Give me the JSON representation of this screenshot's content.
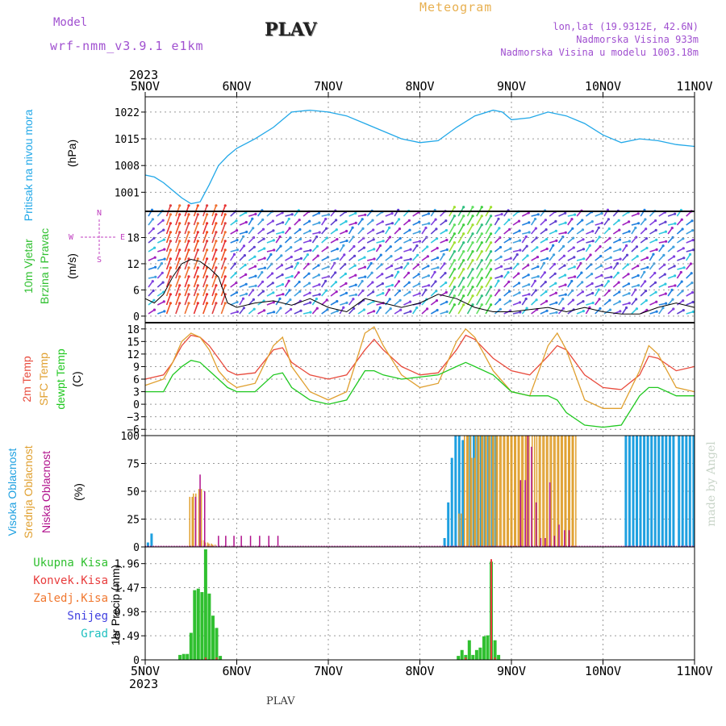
{
  "header": {
    "model_label": "Model",
    "model_name": "wrf-nmm_v3.9.1 e1km",
    "station": "PLAV",
    "product": "Meteogram",
    "lonlat": "lon,lat (19.9312E, 42.6N)",
    "elevation": "Nadmorska Visina 933m",
    "model_elevation": "Nadmorska Visina u modelu 1003.18m",
    "footer_station": "PLAV",
    "credit": "made by Angel"
  },
  "colors": {
    "pressure": "#22a8e8",
    "temp2m": "#e84a3c",
    "sfc_temp": "#e0a030",
    "dewpt": "#20c820",
    "high_cloud": "#1ea0e0",
    "mid_cloud": "#e0a030",
    "low_cloud": "#b0108c",
    "total_precip": "#30c030",
    "conv_precip": "#e83c3c",
    "frz_precip": "#f07830",
    "snow": "#4040e0",
    "grad": "#20c0c0",
    "model_text": "#a050d0",
    "product_text": "#e8b050",
    "axis_label_purple": "#c040c0"
  },
  "chart_data": [
    {
      "type": "line",
      "panel": "pressure",
      "ylabel_lines": [
        "Pritisak na nivou mora",
        "(hPa)"
      ],
      "yticks": [
        1001,
        1008,
        1015,
        1022
      ],
      "ylim": [
        996,
        1026
      ],
      "x_unit": "days since 5NOV 2023",
      "series": [
        {
          "name": "Pritisak na nivou mora",
          "x": [
            0,
            0.1,
            0.2,
            0.3,
            0.4,
            0.5,
            0.6,
            0.7,
            0.8,
            0.9,
            1.0,
            1.2,
            1.4,
            1.6,
            1.8,
            2.0,
            2.2,
            2.4,
            2.6,
            2.8,
            3.0,
            3.2,
            3.4,
            3.6,
            3.8,
            3.9,
            4.0,
            4.2,
            4.4,
            4.6,
            4.8,
            5.0,
            5.2,
            5.4,
            5.6,
            5.8,
            6.0
          ],
          "values": [
            1005.5,
            1005,
            1003.5,
            1001.5,
            999.5,
            998,
            998.5,
            1003,
            1008,
            1010.5,
            1012.5,
            1015,
            1018,
            1022,
            1022.5,
            1022,
            1021,
            1019,
            1017,
            1015,
            1014,
            1014.5,
            1018,
            1021,
            1022.5,
            1022,
            1020,
            1020.5,
            1022,
            1021,
            1019,
            1016,
            1014,
            1015,
            1014.5,
            1013.5,
            1013
          ]
        }
      ]
    },
    {
      "type": "line",
      "panel": "wind",
      "ylabel_lines": [
        "10m Vjetar",
        "Brzina i Pravac",
        "(m/s)"
      ],
      "compass": {
        "n": "N",
        "s": "S",
        "e": "E",
        "w": "W"
      },
      "yticks": [
        0,
        6,
        12,
        18
      ],
      "ylim": [
        -1.5,
        24
      ],
      "series": [
        {
          "name": "Brzina",
          "x": [
            0,
            0.1,
            0.2,
            0.3,
            0.4,
            0.5,
            0.6,
            0.7,
            0.8,
            0.9,
            1.0,
            1.2,
            1.4,
            1.6,
            1.8,
            2.0,
            2.2,
            2.4,
            2.6,
            2.8,
            3.0,
            3.2,
            3.4,
            3.6,
            3.8,
            4.0,
            4.2,
            4.4,
            4.6,
            4.8,
            5.0,
            5.2,
            5.4,
            5.6,
            5.8,
            6.0
          ],
          "values": [
            4,
            3,
            5,
            9,
            12,
            13,
            12.5,
            11,
            9,
            3,
            2,
            3,
            3.5,
            2.5,
            4,
            2,
            1,
            4,
            3,
            2,
            3,
            5,
            4,
            2,
            1,
            1,
            1.5,
            2,
            1,
            2,
            1,
            0.5,
            0.5,
            2,
            3,
            2
          ]
        }
      ]
    },
    {
      "type": "line",
      "panel": "temperature",
      "ylabel_lines": [
        "2m Temp",
        "SFC Temp",
        "dewpt Temp",
        "(C)"
      ],
      "yticks": [
        -6,
        -3,
        0,
        3,
        6,
        9,
        12,
        15,
        18
      ],
      "ylim": [
        -7.5,
        19.5
      ],
      "series": [
        {
          "name": "2m Temp",
          "x": [
            0,
            0.2,
            0.3,
            0.4,
            0.5,
            0.6,
            0.7,
            0.8,
            0.9,
            1.0,
            1.2,
            1.4,
            1.5,
            1.6,
            1.8,
            2.0,
            2.2,
            2.4,
            2.5,
            2.6,
            2.8,
            3.0,
            3.2,
            3.4,
            3.5,
            3.6,
            3.8,
            4.0,
            4.2,
            4.4,
            4.5,
            4.6,
            4.8,
            5.0,
            5.2,
            5.4,
            5.5,
            5.6,
            5.8,
            6.0
          ],
          "values": [
            6,
            7,
            10,
            14,
            16.5,
            16,
            14,
            11,
            8,
            7,
            7.5,
            13,
            13.5,
            10,
            7,
            6,
            7,
            13,
            15.5,
            13,
            9,
            7,
            7.5,
            13,
            16.5,
            15.5,
            11,
            8,
            7,
            11.5,
            14,
            13,
            7,
            4,
            3.5,
            7,
            11.5,
            11,
            8,
            9
          ]
        },
        {
          "name": "SFC Temp",
          "x": [
            0,
            0.2,
            0.3,
            0.4,
            0.5,
            0.6,
            0.7,
            0.8,
            0.9,
            1.0,
            1.2,
            1.4,
            1.5,
            1.6,
            1.8,
            2.0,
            2.2,
            2.4,
            2.5,
            2.6,
            2.8,
            3.0,
            3.2,
            3.4,
            3.5,
            3.6,
            3.8,
            4.0,
            4.2,
            4.4,
            4.5,
            4.6,
            4.8,
            5.0,
            5.2,
            5.4,
            5.5,
            5.6,
            5.8,
            6.0
          ],
          "values": [
            4.5,
            6,
            10,
            15,
            17,
            16,
            13,
            8,
            5.5,
            4,
            5,
            14,
            16,
            9,
            3,
            1,
            3,
            17,
            18.5,
            14,
            7,
            4,
            5,
            15,
            18,
            16,
            8,
            3,
            2,
            14,
            17,
            13,
            1,
            -1,
            -1,
            8,
            14,
            12,
            4,
            3
          ]
        },
        {
          "name": "dewpt Temp",
          "x": [
            0,
            0.2,
            0.3,
            0.4,
            0.5,
            0.6,
            0.7,
            0.8,
            0.9,
            1.0,
            1.2,
            1.4,
            1.5,
            1.6,
            1.8,
            2.0,
            2.2,
            2.4,
            2.5,
            2.6,
            2.8,
            3.0,
            3.2,
            3.4,
            3.5,
            3.6,
            3.8,
            4.0,
            4.2,
            4.4,
            4.5,
            4.6,
            4.8,
            5.0,
            5.2,
            5.4,
            5.5,
            5.6,
            5.8,
            6.0
          ],
          "values": [
            3,
            3,
            7,
            9,
            10.5,
            10,
            8,
            6,
            4,
            3,
            3,
            7,
            7.5,
            4,
            1,
            0,
            1,
            8,
            8,
            7,
            6,
            6.5,
            7,
            9,
            10,
            9,
            7,
            3,
            2,
            2,
            1,
            -2,
            -5,
            -5.5,
            -5,
            2,
            4,
            4,
            2,
            2
          ]
        }
      ]
    },
    {
      "type": "bar",
      "panel": "cloud",
      "ylabel_lines": [
        "Visoka Oblacnost",
        "Srednja Oblacnost",
        "Niska Oblacnost",
        "(%)"
      ],
      "yticks": [
        0,
        25,
        50,
        75,
        100
      ],
      "ylim": [
        0,
        100
      ],
      "series": [
        {
          "name": "Visoka Oblacnost",
          "x": [
            0.03,
            0.07,
            3.27,
            3.31,
            3.35,
            3.39,
            3.43,
            3.47,
            3.55,
            3.59,
            3.63,
            3.67,
            3.71,
            3.75,
            3.79,
            3.83,
            5.25,
            5.29,
            5.33,
            5.37,
            5.41,
            5.45,
            5.49,
            5.53,
            5.57,
            5.61,
            5.65,
            5.69,
            5.73,
            5.77,
            5.83,
            5.87,
            5.91,
            5.95,
            5.99
          ],
          "values": [
            4,
            12,
            8,
            40,
            80,
            100,
            100,
            96,
            100,
            100,
            100,
            100,
            100,
            100,
            100,
            100,
            100,
            100,
            100,
            100,
            100,
            100,
            100,
            100,
            100,
            100,
            100,
            100,
            100,
            100,
            100,
            100,
            100,
            100,
            100
          ]
        },
        {
          "name": "Srednja Oblacnost",
          "x": [
            0.5,
            0.54,
            0.6,
            0.63,
            0.67,
            0.71,
            0.75,
            3.44,
            3.5,
            3.54,
            3.58,
            3.62,
            3.66,
            3.7,
            3.74,
            3.78,
            3.82,
            3.86,
            3.9,
            3.94,
            3.98,
            4.02,
            4.06,
            4.1,
            4.14,
            4.18,
            4.24,
            4.29,
            4.33,
            4.37,
            4.41,
            4.45,
            4.49,
            4.53,
            4.57,
            4.61,
            4.65,
            4.69
          ],
          "values": [
            45,
            48,
            52,
            6,
            4,
            3,
            2,
            30,
            100,
            100,
            80,
            100,
            100,
            100,
            100,
            100,
            100,
            100,
            100,
            100,
            100,
            100,
            100,
            100,
            100,
            100,
            100,
            100,
            100,
            100,
            100,
            100,
            100,
            100,
            100,
            100,
            100,
            100
          ]
        },
        {
          "name": "Niska Oblacnost",
          "x": [
            0.55,
            0.6,
            0.65,
            0.8,
            0.88,
            0.97,
            1.05,
            1.15,
            1.25,
            1.35,
            1.45,
            4.1,
            4.15,
            4.18,
            4.22,
            4.27,
            4.32,
            4.37,
            4.42,
            4.47,
            4.52,
            4.58,
            4.63
          ],
          "values": [
            45,
            65,
            50,
            10,
            10,
            10,
            10,
            10,
            10,
            10,
            10,
            60,
            60,
            100,
            90,
            40,
            8,
            8,
            58,
            10,
            20,
            15,
            15
          ]
        }
      ]
    },
    {
      "type": "bar",
      "panel": "precip",
      "ylabel_lines": [
        "Ukupna Kisa",
        "Konvek.Kisa",
        "Zaledj.Kisa",
        "Snijeg",
        "Grad",
        "1hr Precip (mm)"
      ],
      "yticks": [
        0,
        0.49,
        0.98,
        1.47,
        1.96
      ],
      "ylim": [
        0,
        2.3
      ],
      "series": [
        {
          "name": "Ukupna Kisa",
          "x": [
            0.38,
            0.42,
            0.46,
            0.5,
            0.54,
            0.58,
            0.62,
            0.66,
            0.7,
            0.74,
            0.78,
            0.82,
            3.42,
            3.46,
            3.5,
            3.54,
            3.58,
            3.62,
            3.66,
            3.7,
            3.74,
            3.78,
            3.82,
            3.86
          ],
          "values": [
            0.1,
            0.12,
            0.12,
            0.55,
            1.42,
            1.45,
            1.38,
            2.25,
            1.35,
            0.9,
            0.65,
            0.08,
            0.08,
            0.2,
            0.1,
            0.4,
            0.1,
            0.2,
            0.25,
            0.48,
            0.5,
            2.0,
            0.4,
            0.1
          ]
        },
        {
          "name": "Konvek.Kisa",
          "x": [
            0.66,
            0.78,
            3.5,
            3.78,
            3.82
          ],
          "values": [
            0.05,
            0.05,
            0.05,
            2.05,
            0.05
          ]
        }
      ]
    }
  ],
  "x_axis": {
    "year": "2023",
    "labels": [
      "5NOV",
      "6NOV",
      "7NOV",
      "8NOV",
      "9NOV",
      "10NOV",
      "11NOV"
    ]
  }
}
